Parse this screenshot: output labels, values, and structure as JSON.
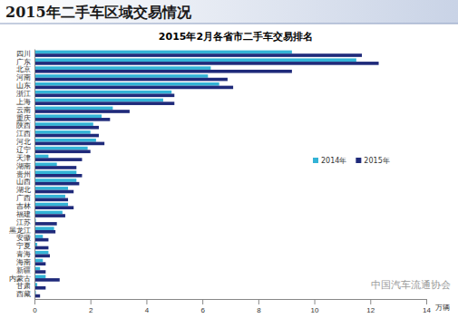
{
  "page_title": "2015年二手车区域交易情况",
  "watermark": "中国汽车流通协会",
  "chart_data": {
    "type": "bar",
    "orientation": "horizontal",
    "title": "2015年2月各省市二手车交易排名",
    "x_label": "万辆",
    "categories": [
      "四川",
      "广东",
      "北京",
      "河南",
      "山东",
      "浙江",
      "上海",
      "云南",
      "重庆",
      "陕西",
      "江西",
      "河北",
      "辽宁",
      "天津",
      "湖南",
      "贵州",
      "山西",
      "湖北",
      "广西",
      "吉林",
      "福建",
      "江苏",
      "黑龙江",
      "安徽",
      "宁夏",
      "青海",
      "海南",
      "新疆",
      "内蒙古",
      "甘肃",
      "西藏"
    ],
    "series": [
      {
        "name": "2014年",
        "color": "#33b3d6",
        "values": [
          9.2,
          11.5,
          6.3,
          6.2,
          6.6,
          4.9,
          4.6,
          2.8,
          2.4,
          2.1,
          2.0,
          2.2,
          1.9,
          0.5,
          0.8,
          1.5,
          1.5,
          1.2,
          1.1,
          1.2,
          1.0,
          0.05,
          0.7,
          0.3,
          0.1,
          0.5,
          0.3,
          0.2,
          0.4,
          0.1,
          0.05
        ]
      },
      {
        "name": "2015年",
        "color": "#1f2a7a",
        "values": [
          11.7,
          12.3,
          9.2,
          6.9,
          7.1,
          5.0,
          5.0,
          3.4,
          2.7,
          2.3,
          2.3,
          2.5,
          2.0,
          1.7,
          1.5,
          1.7,
          1.6,
          1.4,
          1.2,
          1.4,
          1.1,
          0.8,
          0.75,
          0.5,
          0.5,
          0.55,
          0.4,
          0.4,
          0.9,
          0.4,
          0.2
        ]
      }
    ],
    "xlim": [
      0,
      14
    ],
    "xticks": [
      0,
      2,
      4,
      6,
      8,
      10,
      12,
      14
    ],
    "grid": false,
    "legend": "right"
  }
}
